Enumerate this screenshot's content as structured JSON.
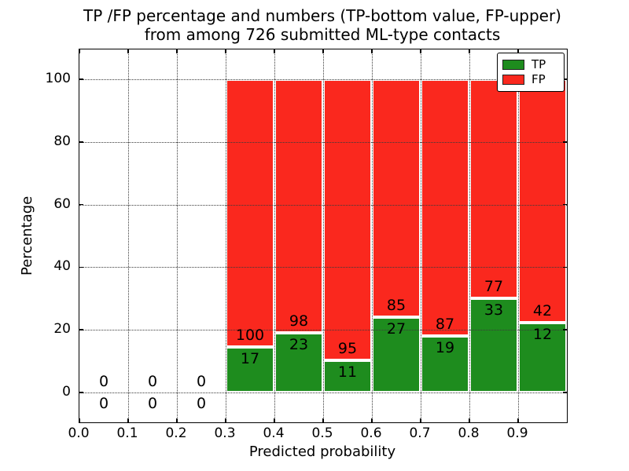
{
  "chart_data": {
    "type": "bar",
    "subtype": "stacked-percentage-bars",
    "title": "TP /FP percentage and numbers (TP-bottom value, FP-upper)\nfrom among 726 submitted ML-type contacts",
    "title_lines": [
      "TP /FP percentage and numbers (TP-bottom value, FP-upper)",
      "from among 726 submitted ML-type contacts"
    ],
    "xlabel": "Predicted probability",
    "ylabel": "Percentage",
    "total_contacts": 726,
    "xlim": [
      0.0,
      1.0
    ],
    "ylim": [
      -9.5,
      109.5
    ],
    "grid": true,
    "bin_width": 0.1,
    "x_tick_labels": [
      "0.0",
      "0.1",
      "0.2",
      "0.3",
      "0.4",
      "0.5",
      "0.6",
      "0.7",
      "0.8",
      "0.9"
    ],
    "y_ticks": [
      0,
      20,
      40,
      60,
      80,
      100
    ],
    "y_tick_labels": [
      "0",
      "20",
      "40",
      "60",
      "80",
      "100"
    ],
    "legend": {
      "position": "upper-right",
      "entries": [
        {
          "label": "TP",
          "color": "#1e8c1e"
        },
        {
          "label": "FP",
          "color": "#fa281e"
        }
      ]
    },
    "bins": [
      {
        "x_start": 0.0,
        "tp_count": 0,
        "fp_count": 0,
        "tp_pct": 0,
        "fp_pct": 0
      },
      {
        "x_start": 0.1,
        "tp_count": 0,
        "fp_count": 0,
        "tp_pct": 0,
        "fp_pct": 0
      },
      {
        "x_start": 0.2,
        "tp_count": 0,
        "fp_count": 0,
        "tp_pct": 0,
        "fp_pct": 0
      },
      {
        "x_start": 0.3,
        "tp_count": 17,
        "fp_count": 100,
        "tp_pct": 14.5,
        "fp_pct": 85.5
      },
      {
        "x_start": 0.4,
        "tp_count": 23,
        "fp_count": 98,
        "tp_pct": 19.0,
        "fp_pct": 81.0
      },
      {
        "x_start": 0.5,
        "tp_count": 11,
        "fp_count": 95,
        "tp_pct": 10.4,
        "fp_pct": 89.6
      },
      {
        "x_start": 0.6,
        "tp_count": 27,
        "fp_count": 85,
        "tp_pct": 24.1,
        "fp_pct": 75.9
      },
      {
        "x_start": 0.7,
        "tp_count": 19,
        "fp_count": 87,
        "tp_pct": 17.9,
        "fp_pct": 82.1
      },
      {
        "x_start": 0.8,
        "tp_count": 33,
        "fp_count": 77,
        "tp_pct": 30.0,
        "fp_pct": 70.0
      },
      {
        "x_start": 0.9,
        "tp_count": 12,
        "fp_count": 42,
        "tp_pct": 22.2,
        "fp_pct": 77.8
      }
    ],
    "colors": {
      "tp": "#1e8c1e",
      "fp": "#fa281e",
      "bar_edge": "#ffffff",
      "grid": "#3a3a3a"
    }
  }
}
